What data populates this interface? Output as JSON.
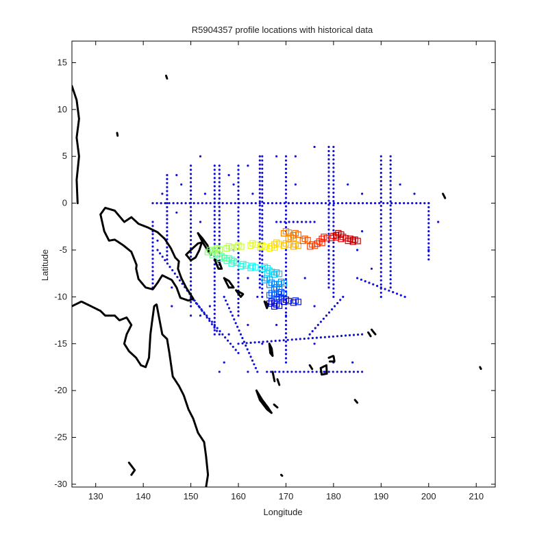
{
  "chart_data": {
    "type": "scatter",
    "title": "R5904357 profile locations with historical data",
    "xlabel": "Longitude",
    "ylabel": "Latitude",
    "xlim": [
      125,
      214
    ],
    "ylim": [
      -30.3,
      17.3
    ],
    "xticks": [
      130,
      140,
      150,
      160,
      170,
      180,
      190,
      200,
      210
    ],
    "yticks": [
      15,
      10,
      5,
      0,
      -5,
      -10,
      -15,
      -20,
      -25,
      -30
    ],
    "grid": false,
    "legend": "none",
    "colors": {
      "historical": "#1010d8",
      "coast": "#000000",
      "float_track_start": "#000090",
      "float_track_end": "#900000"
    },
    "series": [
      {
        "role": "historical",
        "lines": [
          {
            "from": [
              142,
              0
            ],
            "to": [
              200,
              0
            ]
          },
          {
            "from": [
              180,
              6
            ],
            "to": [
              180,
              -10
            ]
          },
          {
            "from": [
              179,
              6
            ],
            "to": [
              179,
              -9
            ]
          },
          {
            "from": [
              165,
              5
            ],
            "to": [
              165,
              -10
            ]
          },
          {
            "from": [
              164.5,
              5
            ],
            "to": [
              164.5,
              -9
            ]
          },
          {
            "from": [
              170,
              5
            ],
            "to": [
              170,
              -3
            ]
          },
          {
            "from": [
              170,
              -5
            ],
            "to": [
              170,
              -17
            ]
          },
          {
            "from": [
              155,
              4
            ],
            "to": [
              155,
              -14
            ]
          },
          {
            "from": [
              156,
              4
            ],
            "to": [
              156,
              -7
            ]
          },
          {
            "from": [
              150,
              4
            ],
            "to": [
              150,
              -11
            ]
          },
          {
            "from": [
              145,
              3
            ],
            "to": [
              145,
              -6
            ]
          },
          {
            "from": [
              160,
              4
            ],
            "to": [
              160,
              -12
            ]
          },
          {
            "from": [
              190,
              5
            ],
            "to": [
              190,
              -10
            ]
          },
          {
            "from": [
              192,
              5
            ],
            "to": [
              192,
              -9
            ]
          },
          {
            "from": [
              200,
              0
            ],
            "to": [
              200,
              -6
            ]
          },
          {
            "from": [
              160,
              -15
            ],
            "to": [
              186,
              -14
            ]
          },
          {
            "from": [
              166,
              -18
            ],
            "to": [
              186,
              -18
            ]
          },
          {
            "from": [
              185,
              -8
            ],
            "to": [
              195,
              -10
            ]
          },
          {
            "from": [
              143,
              -5
            ],
            "to": [
              156,
              -14
            ]
          },
          {
            "from": [
              150,
              -10
            ],
            "to": [
              160,
              -16
            ]
          },
          {
            "from": [
              157,
              -10
            ],
            "to": [
              164,
              -18
            ]
          },
          {
            "from": [
              175,
              -14
            ],
            "to": [
              182,
              -10
            ]
          },
          {
            "from": [
              142,
              -2
            ],
            "to": [
              142,
              -9
            ]
          },
          {
            "from": [
              168,
              -2
            ],
            "to": [
              176,
              -2
            ]
          }
        ],
        "points": [
          [
            176,
            6
          ],
          [
            172,
            5
          ],
          [
            168,
            5
          ],
          [
            162,
            4
          ],
          [
            158,
            3
          ],
          [
            152,
            5
          ],
          [
            147,
            3
          ],
          [
            144,
            1
          ],
          [
            148,
            2
          ],
          [
            153,
            1
          ],
          [
            159,
            2
          ],
          [
            163,
            1
          ],
          [
            172,
            2
          ],
          [
            183,
            2
          ],
          [
            186,
            1
          ],
          [
            194,
            2
          ],
          [
            197,
            1
          ],
          [
            202,
            -2
          ],
          [
            200,
            -5
          ],
          [
            185,
            -5
          ],
          [
            188,
            -7
          ],
          [
            186,
            -3
          ],
          [
            174,
            -8
          ],
          [
            176,
            -11
          ],
          [
            170,
            -12
          ],
          [
            168,
            -13
          ],
          [
            162,
            -13
          ],
          [
            158,
            -14
          ],
          [
            156,
            -18
          ],
          [
            162,
            -18
          ],
          [
            178,
            -18
          ],
          [
            180,
            -17
          ],
          [
            184,
            -17
          ],
          [
            176,
            -15
          ],
          [
            152,
            -12
          ],
          [
            146,
            -9
          ],
          [
            148,
            -8
          ],
          [
            146,
            -11
          ],
          [
            150,
            -12
          ],
          [
            154,
            -11
          ],
          [
            158,
            -9
          ],
          [
            162,
            -8
          ],
          [
            164,
            -10
          ],
          [
            159,
            -5
          ],
          [
            152,
            -2
          ],
          [
            147,
            -1
          ],
          [
            143,
            -4
          ],
          [
            142,
            -3
          ],
          [
            157,
            -17
          ],
          [
            165,
            -15
          ]
        ]
      },
      {
        "role": "float_track",
        "points": [
          [
            167,
            -10.5
          ],
          [
            168,
            -10.8
          ],
          [
            170,
            -10.3
          ],
          [
            172,
            -10.4
          ],
          [
            168.5,
            -10
          ],
          [
            169,
            -9.5
          ],
          [
            167,
            -9.6
          ],
          [
            168,
            -9
          ],
          [
            167,
            -8.5
          ],
          [
            169,
            -8.4
          ],
          [
            166,
            -8
          ],
          [
            168,
            -7.4
          ],
          [
            166.5,
            -7.2
          ],
          [
            165.5,
            -6.8
          ],
          [
            163,
            -6.7
          ],
          [
            161,
            -6.5
          ],
          [
            159,
            -6.2
          ],
          [
            158,
            -5.9
          ],
          [
            156.5,
            -5.7
          ],
          [
            155,
            -5.3
          ],
          [
            154,
            -5
          ],
          [
            155.5,
            -4.8
          ],
          [
            158,
            -4.6
          ],
          [
            160,
            -4.5
          ],
          [
            163,
            -4.3
          ],
          [
            165,
            -4.5
          ],
          [
            167,
            -4.6
          ],
          [
            168,
            -4.2
          ],
          [
            170,
            -4.3
          ],
          [
            172,
            -4.4
          ],
          [
            171,
            -3.6
          ],
          [
            170,
            -3
          ],
          [
            172,
            -3.2
          ],
          [
            174,
            -3.8
          ],
          [
            175.5,
            -4.4
          ],
          [
            177,
            -4.1
          ],
          [
            178,
            -3.6
          ],
          [
            180,
            -3.5
          ],
          [
            182,
            -3.6
          ],
          [
            183.5,
            -3.8
          ],
          [
            184.5,
            -3.9
          ],
          [
            181,
            -3.2
          ]
        ]
      }
    ],
    "coastlines": [
      [
        [
          125,
          12.5
        ],
        [
          126,
          11
        ],
        [
          126.5,
          9
        ],
        [
          126,
          7
        ],
        [
          126.5,
          5
        ],
        [
          126,
          2.5
        ],
        [
          126.2,
          0
        ]
      ],
      [
        [
          125,
          -11
        ],
        [
          127,
          -10.5
        ],
        [
          129,
          -11
        ],
        [
          131,
          -11.5
        ],
        [
          132,
          -12
        ],
        [
          134,
          -12
        ],
        [
          135,
          -12.5
        ],
        [
          136.5,
          -12.2
        ],
        [
          137.5,
          -13
        ],
        [
          136.5,
          -14
        ],
        [
          136,
          -15
        ],
        [
          137,
          -15.8
        ],
        [
          138.5,
          -16.5
        ],
        [
          139.5,
          -17.3
        ],
        [
          140.5,
          -17.5
        ],
        [
          141.2,
          -16.5
        ],
        [
          141.5,
          -14
        ],
        [
          141.8,
          -12.8
        ],
        [
          142.3,
          -11
        ],
        [
          142.8,
          -10.8
        ],
        [
          143.5,
          -12.7
        ],
        [
          144,
          -14
        ],
        [
          145,
          -14.5
        ],
        [
          145.5,
          -16
        ],
        [
          146.2,
          -18.5
        ],
        [
          147.5,
          -19.5
        ],
        [
          148.5,
          -20.5
        ],
        [
          149.5,
          -22
        ],
        [
          150.5,
          -23
        ],
        [
          151.5,
          -24.5
        ],
        [
          152.8,
          -25.5
        ],
        [
          153.2,
          -27
        ],
        [
          153.6,
          -29
        ],
        [
          153.2,
          -30.3
        ]
      ],
      [
        [
          131,
          -1.2
        ],
        [
          132,
          -0.5
        ],
        [
          134,
          -0.8
        ],
        [
          136,
          -2
        ],
        [
          137.5,
          -1.5
        ],
        [
          139,
          -2.2
        ],
        [
          141,
          -2.6
        ],
        [
          143,
          -3.1
        ],
        [
          144.5,
          -3.8
        ],
        [
          145.8,
          -4.8
        ],
        [
          146.7,
          -5.8
        ],
        [
          147.5,
          -6.2
        ],
        [
          147.3,
          -7
        ],
        [
          148,
          -8
        ],
        [
          149,
          -9
        ],
        [
          150.5,
          -10.2
        ],
        [
          149.5,
          -10.4
        ],
        [
          147.8,
          -10.1
        ],
        [
          147,
          -9
        ],
        [
          146,
          -8.2
        ],
        [
          144,
          -7.7
        ],
        [
          143,
          -8.5
        ],
        [
          142,
          -9.2
        ],
        [
          140.5,
          -9
        ],
        [
          139,
          -8.1
        ],
        [
          138.5,
          -7
        ],
        [
          138.6,
          -6.6
        ],
        [
          137.5,
          -5.2
        ],
        [
          135.8,
          -4.5
        ],
        [
          134,
          -3.9
        ],
        [
          132.8,
          -4
        ],
        [
          131.8,
          -3
        ],
        [
          131,
          -1.2
        ]
      ],
      [
        [
          150,
          -5
        ],
        [
          151.5,
          -4.3
        ],
        [
          152.3,
          -4.2
        ],
        [
          151.8,
          -5
        ],
        [
          151,
          -5.8
        ],
        [
          150,
          -6.1
        ],
        [
          149,
          -5.5
        ],
        [
          150,
          -5
        ]
      ],
      [
        [
          151.5,
          -3.2
        ],
        [
          152.5,
          -3.8
        ],
        [
          153.5,
          -4.5
        ],
        [
          154.2,
          -5.5
        ],
        [
          153.5,
          -5
        ],
        [
          152.5,
          -4.2
        ],
        [
          151.5,
          -3.2
        ]
      ],
      [
        [
          155,
          -6
        ],
        [
          156,
          -6.3
        ],
        [
          156.5,
          -7
        ],
        [
          155.8,
          -7
        ],
        [
          155,
          -6
        ]
      ],
      [
        [
          157,
          -8
        ],
        [
          158,
          -8.3
        ],
        [
          159,
          -9
        ],
        [
          158,
          -9
        ],
        [
          157,
          -8
        ]
      ],
      [
        [
          159.5,
          -9.3
        ],
        [
          161,
          -9.7
        ],
        [
          160.5,
          -10
        ],
        [
          159.5,
          -9.3
        ]
      ],
      [
        [
          165.5,
          -10.5
        ],
        [
          166.3,
          -10.8
        ],
        [
          166,
          -11.2
        ],
        [
          165.5,
          -10.5
        ]
      ],
      [
        [
          166.5,
          -15
        ],
        [
          167,
          -15.5
        ],
        [
          167.2,
          -16.3
        ],
        [
          166.7,
          -16
        ],
        [
          166.5,
          -15
        ]
      ],
      [
        [
          163.8,
          -20
        ],
        [
          165,
          -21
        ],
        [
          166.2,
          -21.8
        ],
        [
          167,
          -22.4
        ],
        [
          166,
          -22
        ],
        [
          164.5,
          -21
        ],
        [
          163.8,
          -20
        ]
      ],
      [
        [
          167.5,
          -21.5
        ],
        [
          168.2,
          -21.8
        ]
      ],
      [
        [
          177.3,
          -17.6
        ],
        [
          178.5,
          -17.3
        ],
        [
          178.6,
          -18.2
        ],
        [
          177.5,
          -18.3
        ],
        [
          177.3,
          -17.6
        ]
      ],
      [
        [
          179,
          -16.5
        ],
        [
          180,
          -16.3
        ],
        [
          180.2,
          -16.9
        ],
        [
          179.2,
          -16.9
        ]
      ],
      [
        [
          184.5,
          -21
        ],
        [
          185,
          -21.3
        ]
      ],
      [
        [
          188,
          -13.5
        ],
        [
          188.8,
          -14
        ]
      ],
      [
        [
          187.3,
          -13.8
        ],
        [
          187.8,
          -14.2
        ]
      ],
      [
        [
          137,
          -27.7
        ],
        [
          138.2,
          -28.5
        ],
        [
          137.5,
          -29
        ]
      ],
      [
        [
          144.8,
          13.6
        ],
        [
          145,
          13.3
        ]
      ],
      [
        [
          134.5,
          7.5
        ],
        [
          134.6,
          7.2
        ]
      ],
      [
        [
          203,
          1
        ],
        [
          203.5,
          0.5
        ]
      ],
      [
        [
          210.8,
          -17.5
        ],
        [
          211,
          -17.7
        ]
      ],
      [
        [
          169,
          -29
        ],
        [
          169.2,
          -29.1
        ]
      ],
      [
        [
          168.2,
          -18.8
        ],
        [
          168.6,
          -19.4
        ]
      ],
      [
        [
          167.2,
          -18
        ],
        [
          167.6,
          -19
        ]
      ],
      [
        [
          175,
          -17.3
        ],
        [
          175.5,
          -17.7
        ]
      ]
    ]
  }
}
